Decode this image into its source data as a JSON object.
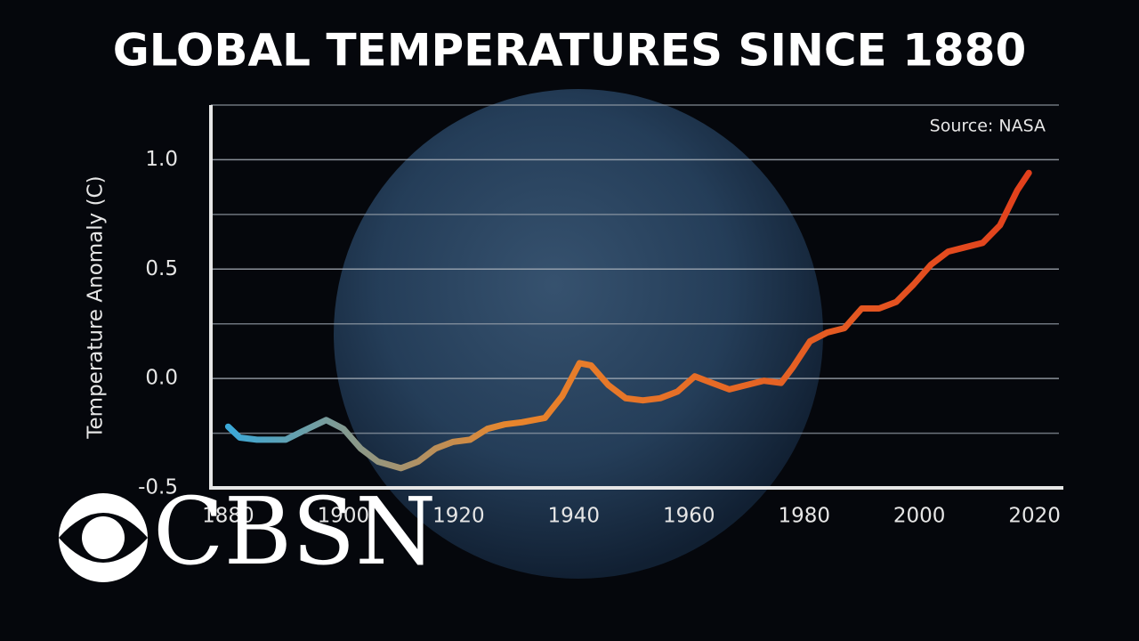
{
  "chart_data": {
    "type": "line",
    "title": "GLOBAL TEMPERATURES SINCE 1880",
    "source": "Source: NASA",
    "ylabel": "Temperature Anomaly (C)",
    "logo": "CBSN",
    "x": [
      1880,
      1882,
      1885,
      1888,
      1890,
      1893,
      1897,
      1900,
      1903,
      1906,
      1910,
      1913,
      1916,
      1919,
      1922,
      1925,
      1928,
      1931,
      1935,
      1938,
      1941,
      1943,
      1946,
      1949,
      1952,
      1955,
      1958,
      1961,
      1964,
      1967,
      1970,
      1973,
      1976,
      1978,
      1981,
      1984,
      1987,
      1990,
      1993,
      1996,
      1999,
      2002,
      2005,
      2008,
      2011,
      2014,
      2017,
      2019
    ],
    "series": [
      {
        "colors": [
          "#3ba8d8",
          "#e8862c",
          "#e2401c"
        ],
        "values": [
          -0.22,
          -0.27,
          -0.28,
          -0.28,
          -0.28,
          -0.24,
          -0.19,
          -0.23,
          -0.32,
          -0.38,
          -0.41,
          -0.38,
          -0.32,
          -0.29,
          -0.28,
          -0.23,
          -0.21,
          -0.2,
          -0.18,
          -0.08,
          0.07,
          0.06,
          -0.03,
          -0.09,
          -0.1,
          -0.09,
          -0.06,
          0.01,
          -0.02,
          -0.05,
          -0.03,
          -0.01,
          -0.02,
          0.05,
          0.17,
          0.21,
          0.23,
          0.32,
          0.32,
          0.35,
          0.43,
          0.52,
          0.58,
          0.6,
          0.62,
          0.7,
          0.86,
          0.94
        ]
      }
    ],
    "xlim": [
      1877,
      2025
    ],
    "xticks": [
      1880,
      1900,
      1920,
      1940,
      1960,
      1980,
      2000,
      2020
    ],
    "ylim": [
      -0.5,
      1.25
    ],
    "yticks": [
      {
        "value": -0.5,
        "label": "-0.5"
      },
      {
        "value": 0,
        "label": "0.0"
      },
      0.5,
      {
        "value": 1,
        "label": "1.0"
      }
    ],
    "minor_yticks": [
      -0.25,
      0.25,
      0.75,
      1.25
    ],
    "grid": true
  }
}
